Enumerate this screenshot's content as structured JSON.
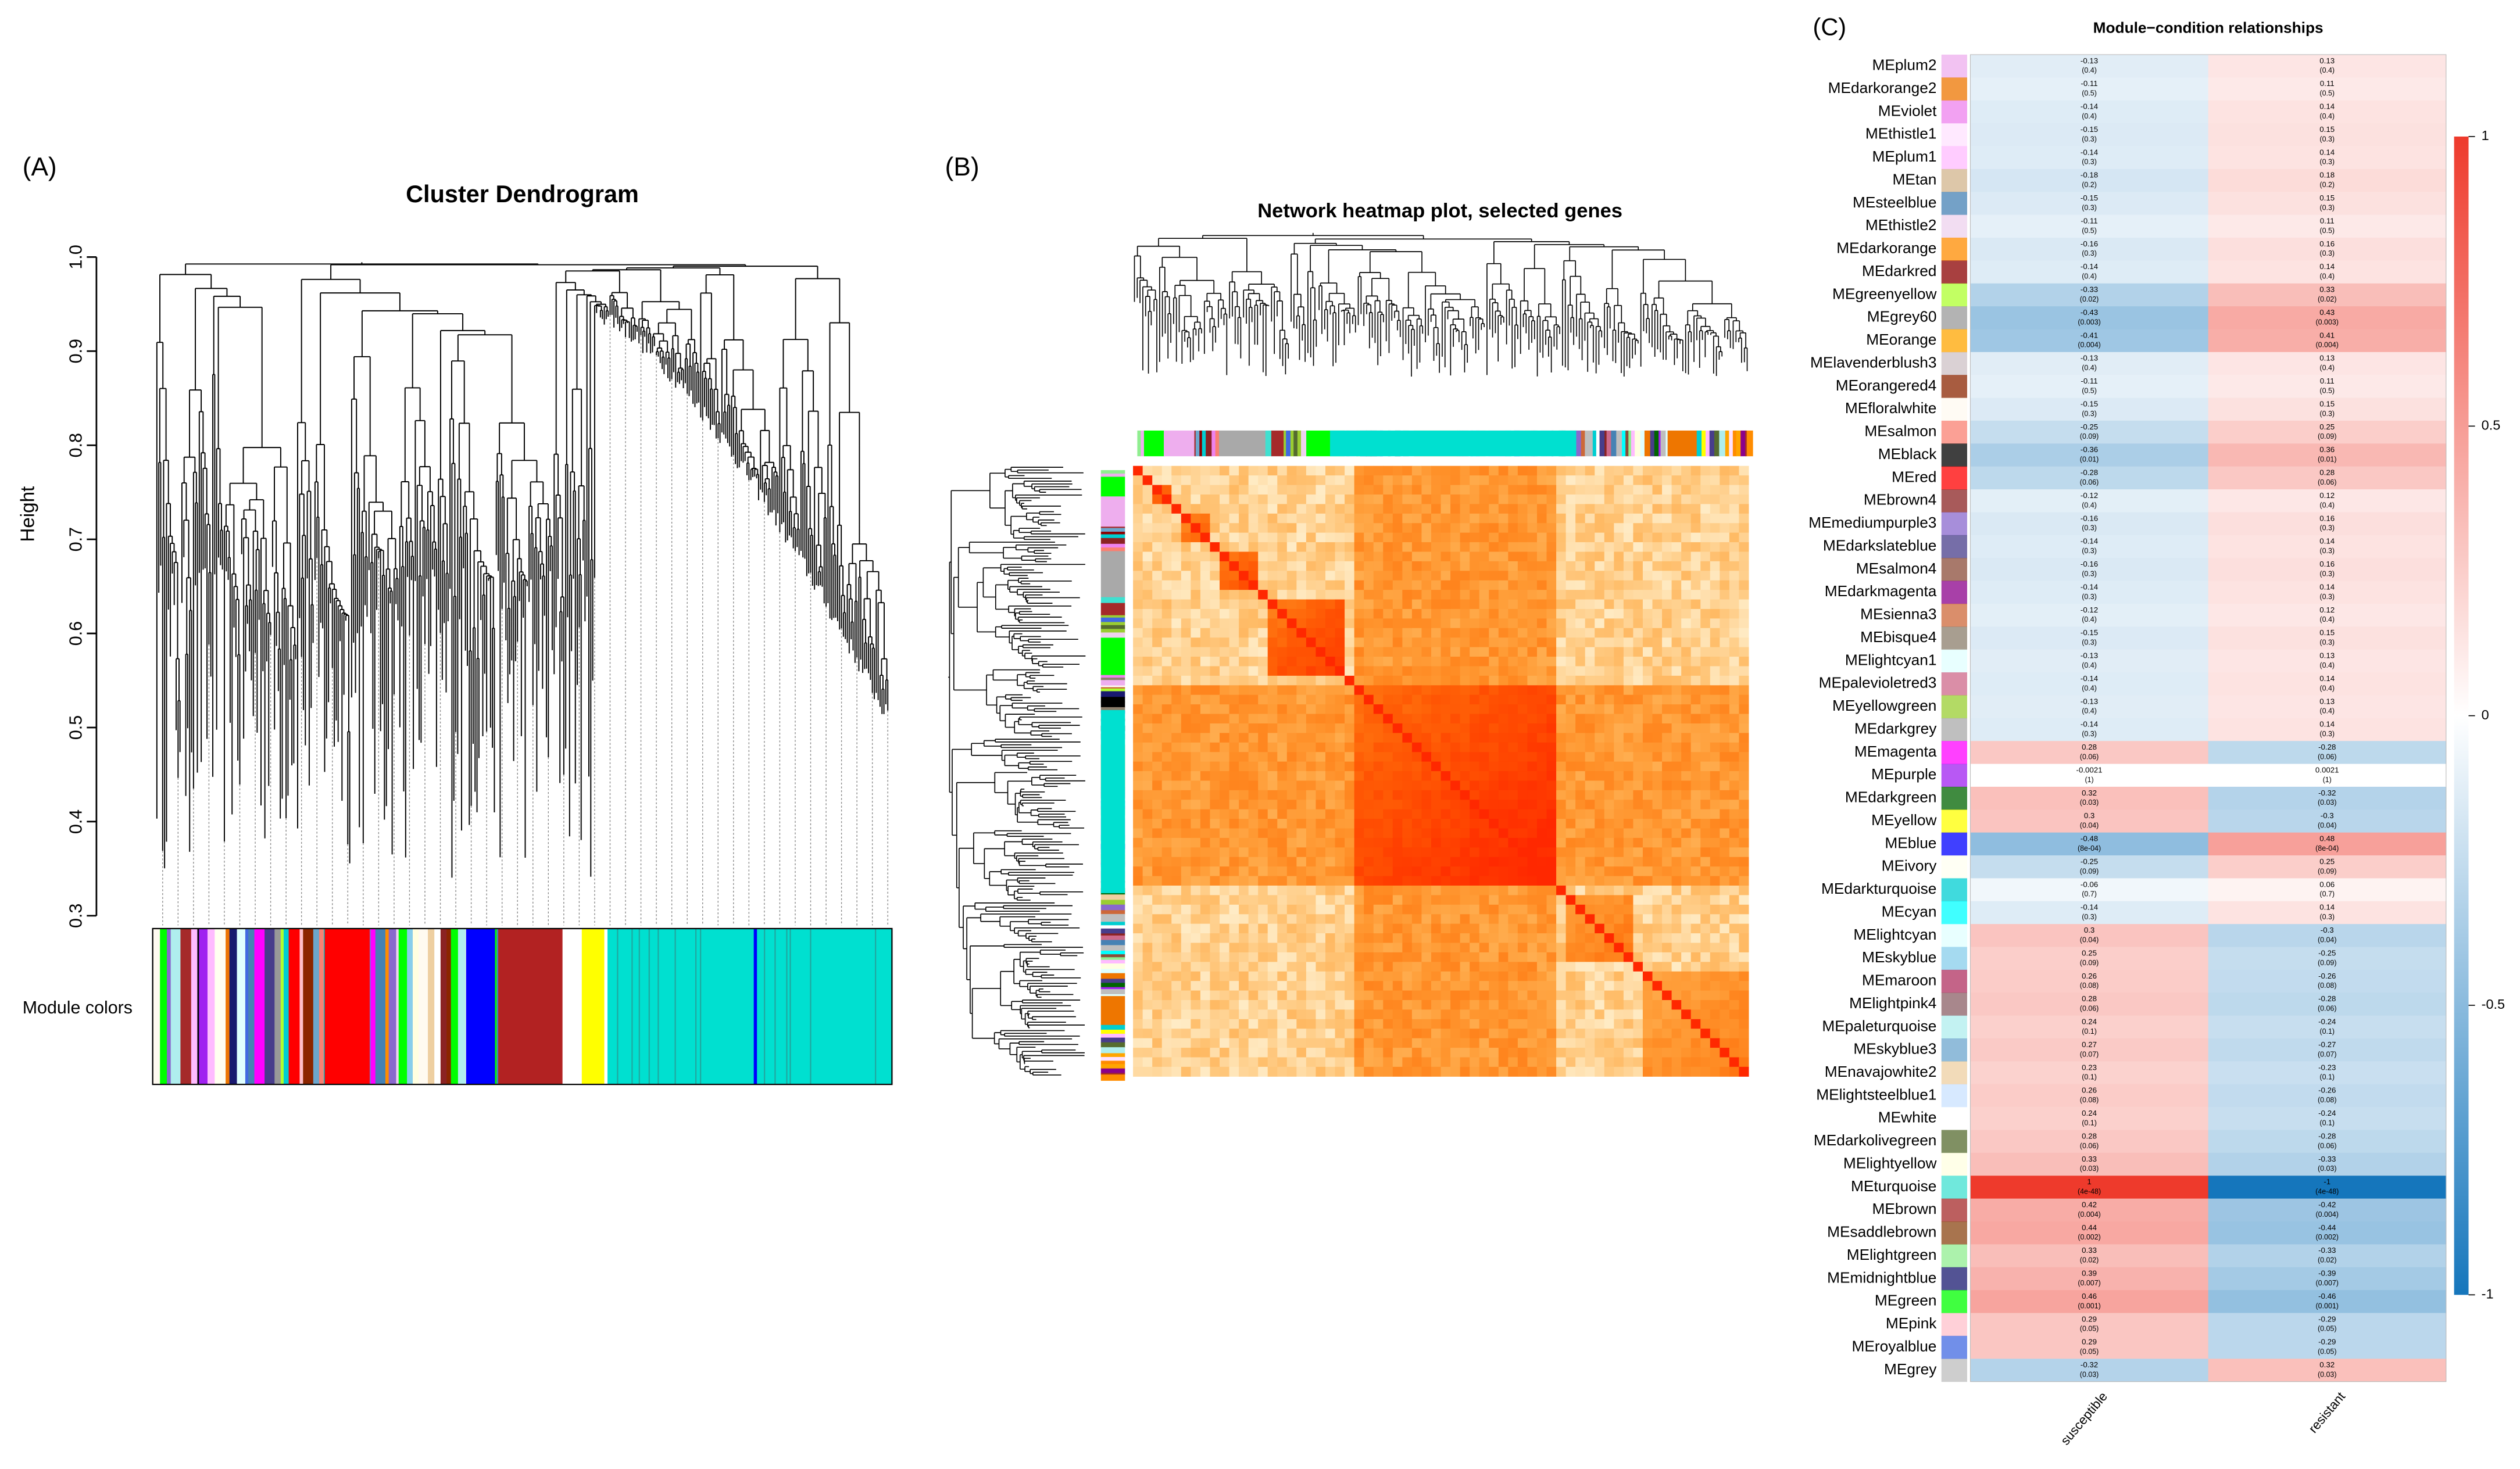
{
  "chart_data": [
    {
      "type": "dendrogram",
      "label": "(A)",
      "title": "Cluster Dendrogram",
      "ylabel": "Height",
      "ylim": [
        0.3,
        1.0
      ],
      "yticks": [
        0.3,
        0.4,
        0.5,
        0.6,
        0.7,
        0.8,
        0.9,
        {
          "value": 1.0,
          "label": "1.0"
        }
      ],
      "color_bar_label": "Module colors"
    },
    {
      "type": "network_heatmap",
      "label": "(B)",
      "title": "Network heatmap plot, selected genes"
    },
    {
      "type": "heatmap",
      "label": "(C)",
      "title": "Module−condition relationships",
      "columns": [
        "susceptible",
        "resistant"
      ],
      "rows": [
        "MEplum2",
        "MEdarkorange2",
        "MEviolet",
        "MEthistle1",
        "MEplum1",
        "MEtan",
        "MEsteelblue",
        "MEthistle2",
        "MEdarkorange",
        "MEdarkred",
        "MEgreenyellow",
        "MEgrey60",
        "MEorange",
        "MElavenderblush3",
        "MEorangered4",
        "MEfloralwhite",
        "MEsalmon",
        "MEblack",
        "MEred",
        "MEbrown4",
        "MEmediumpurple3",
        "MEdarkslateblue",
        "MEsalmon4",
        "MEdarkmagenta",
        "MEsienna3",
        "MEbisque4",
        "MElightcyan1",
        "MEpalevioletred3",
        "MEyellowgreen",
        "MEdarkgrey",
        "MEmagenta",
        "MEpurple",
        "MEdarkgreen",
        "MEyellow",
        "MEblue",
        "MEivory",
        "MEdarkturquoise",
        "MEcyan",
        "MElightcyan",
        "MEskyblue",
        "MEmaroon",
        "MElightpink4",
        "MEpaleturquoise",
        "MEskyblue3",
        "MEnavajowhite2",
        "MElightsteelblue1",
        "MEwhite",
        "MEdarkolivegreen",
        "MElightyellow",
        "MEturquoise",
        "MEbrown",
        "MEsaddlebrown",
        "MElightgreen",
        "MEmidnightblue",
        "MEgreen",
        "MEpink",
        "MEroyalblue",
        "MEgrey"
      ],
      "row_colors": [
        "#eeaeee",
        "#ee7600",
        "#ee82ee",
        "#ffe1ff",
        "#ffbbff",
        "#d2b48c",
        "#4682b4",
        "#eed2ee",
        "#ff8c00",
        "#8b0000",
        "#adff2f",
        "#999999",
        "#ffa500",
        "#cdc1c5",
        "#8b2500",
        "#fffaf0",
        "#fa8072",
        "#000000",
        "#ff0000",
        "#8b2323",
        "#8968cd",
        "#483d8b",
        "#8b4c39",
        "#8b008b",
        "#cd6839",
        "#8b7d6b",
        "#e0ffff",
        "#cd6889",
        "#9acd32",
        "#a9a9a9",
        "#ff00ff",
        "#a020f0",
        "#006400",
        "#ffff00",
        "#0000ff",
        "#fffff0",
        "#00ced1",
        "#00ffff",
        "#e0ffff",
        "#87ceeb",
        "#b03060",
        "#8b5f65",
        "#afeeee",
        "#6ca6cd",
        "#eecfa1",
        "#cae1ff",
        "#ffffff",
        "#556b2f",
        "#ffffe0",
        "#40e0d0",
        "#a52a2a",
        "#8b4513",
        "#90ee90",
        "#191970",
        "#00ff00",
        "#ffc0cb",
        "#4169e1",
        "#bebebe"
      ],
      "values": [
        [
          -0.13,
          0.13
        ],
        [
          -0.11,
          0.11
        ],
        [
          -0.14,
          0.14
        ],
        [
          -0.15,
          0.15
        ],
        [
          -0.14,
          0.14
        ],
        [
          -0.18,
          0.18
        ],
        [
          -0.15,
          0.15
        ],
        [
          -0.11,
          0.11
        ],
        [
          -0.16,
          0.16
        ],
        [
          -0.14,
          0.14
        ],
        [
          -0.33,
          0.33
        ],
        [
          -0.43,
          0.43
        ],
        [
          -0.41,
          0.41
        ],
        [
          -0.13,
          0.13
        ],
        [
          -0.11,
          0.11
        ],
        [
          -0.15,
          0.15
        ],
        [
          -0.25,
          0.25
        ],
        [
          -0.36,
          0.36
        ],
        [
          -0.28,
          0.28
        ],
        [
          -0.12,
          0.12
        ],
        [
          -0.16,
          0.16
        ],
        [
          -0.14,
          0.14
        ],
        [
          -0.16,
          0.16
        ],
        [
          -0.14,
          0.14
        ],
        [
          -0.12,
          0.12
        ],
        [
          -0.15,
          0.15
        ],
        [
          -0.13,
          0.13
        ],
        [
          -0.14,
          0.14
        ],
        [
          -0.13,
          0.13
        ],
        [
          -0.14,
          0.14
        ],
        [
          0.28,
          -0.28
        ],
        [
          -0.0021,
          0.0021
        ],
        [
          0.32,
          -0.32
        ],
        [
          0.3,
          -0.3
        ],
        [
          -0.48,
          0.48
        ],
        [
          -0.25,
          0.25
        ],
        [
          -0.06,
          0.06
        ],
        [
          -0.14,
          0.14
        ],
        [
          0.3,
          -0.3
        ],
        [
          0.25,
          -0.25
        ],
        [
          0.26,
          -0.26
        ],
        [
          0.28,
          -0.28
        ],
        [
          0.24,
          -0.24
        ],
        [
          0.27,
          -0.27
        ],
        [
          0.23,
          -0.23
        ],
        [
          0.26,
          -0.26
        ],
        [
          0.24,
          -0.24
        ],
        [
          0.28,
          -0.28
        ],
        [
          0.33,
          -0.33
        ],
        [
          1,
          -1
        ],
        [
          0.42,
          -0.42
        ],
        [
          0.44,
          -0.44
        ],
        [
          0.33,
          -0.33
        ],
        [
          0.39,
          -0.39
        ],
        [
          0.46,
          -0.46
        ],
        [
          0.29,
          -0.29
        ],
        [
          0.29,
          -0.29
        ],
        [
          -0.32,
          0.32
        ]
      ],
      "p_labels": [
        [
          "(0.4)",
          "(0.4)"
        ],
        [
          "(0.5)",
          "(0.5)"
        ],
        [
          "(0.4)",
          "(0.4)"
        ],
        [
          "(0.3)",
          "(0.3)"
        ],
        [
          "(0.3)",
          "(0.3)"
        ],
        [
          "(0.2)",
          "(0.2)"
        ],
        [
          "(0.3)",
          "(0.3)"
        ],
        [
          "(0.5)",
          "(0.5)"
        ],
        [
          "(0.3)",
          "(0.3)"
        ],
        [
          "(0.4)",
          "(0.4)"
        ],
        [
          "(0.02)",
          "(0.02)"
        ],
        [
          "(0.003)",
          "(0.003)"
        ],
        [
          "(0.004)",
          "(0.004)"
        ],
        [
          "(0.4)",
          "(0.4)"
        ],
        [
          "(0.5)",
          "(0.5)"
        ],
        [
          "(0.3)",
          "(0.3)"
        ],
        [
          "(0.09)",
          "(0.09)"
        ],
        [
          "(0.01)",
          "(0.01)"
        ],
        [
          "(0.06)",
          "(0.06)"
        ],
        [
          "(0.4)",
          "(0.4)"
        ],
        [
          "(0.3)",
          "(0.3)"
        ],
        [
          "(0.3)",
          "(0.3)"
        ],
        [
          "(0.3)",
          "(0.3)"
        ],
        [
          "(0.3)",
          "(0.3)"
        ],
        [
          "(0.4)",
          "(0.4)"
        ],
        [
          "(0.3)",
          "(0.3)"
        ],
        [
          "(0.4)",
          "(0.4)"
        ],
        [
          "(0.4)",
          "(0.4)"
        ],
        [
          "(0.4)",
          "(0.4)"
        ],
        [
          "(0.3)",
          "(0.3)"
        ],
        [
          "(0.06)",
          "(0.06)"
        ],
        [
          "(1)",
          "(1)"
        ],
        [
          "(0.03)",
          "(0.03)"
        ],
        [
          "(0.04)",
          "(0.04)"
        ],
        [
          "(8e-04)",
          "(8e-04)"
        ],
        [
          "(0.09)",
          "(0.09)"
        ],
        [
          "(0.7)",
          "(0.7)"
        ],
        [
          "(0.3)",
          "(0.3)"
        ],
        [
          "(0.04)",
          "(0.04)"
        ],
        [
          "(0.09)",
          "(0.09)"
        ],
        [
          "(0.08)",
          "(0.08)"
        ],
        [
          "(0.06)",
          "(0.06)"
        ],
        [
          "(0.1)",
          "(0.1)"
        ],
        [
          "(0.07)",
          "(0.07)"
        ],
        [
          "(0.1)",
          "(0.1)"
        ],
        [
          "(0.08)",
          "(0.08)"
        ],
        [
          "(0.1)",
          "(0.1)"
        ],
        [
          "(0.06)",
          "(0.06)"
        ],
        [
          "(0.03)",
          "(0.03)"
        ],
        [
          "(4e-48)",
          "(4e-48)"
        ],
        [
          "(0.004)",
          "(0.004)"
        ],
        [
          "(0.002)",
          "(0.002)"
        ],
        [
          "(0.02)",
          "(0.02)"
        ],
        [
          "(0.007)",
          "(0.007)"
        ],
        [
          "(0.001)",
          "(0.001)"
        ],
        [
          "(0.05)",
          "(0.05)"
        ],
        [
          "(0.05)",
          "(0.05)"
        ],
        [
          "(0.03)",
          "(0.03)"
        ]
      ],
      "colormap": [
        "#1576bc",
        "#ffffff",
        "#ee3a2c"
      ],
      "zlim": [
        -1,
        1
      ],
      "zticks": [
        -1,
        -0.5,
        0,
        0.5,
        1
      ]
    }
  ]
}
